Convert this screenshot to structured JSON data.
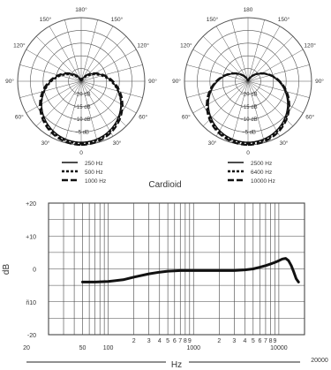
{
  "chart_data": [
    {
      "type": "polar",
      "angle_labels": [
        "180°",
        "150°",
        "150°",
        "120°",
        "120°",
        "90°",
        "90°",
        "60°",
        "60°",
        "30°",
        "30°",
        "0"
      ],
      "ring_labels": [
        "−20 dB",
        "−15 dB",
        "−10 dB",
        "−5 dB"
      ],
      "series": [
        {
          "name": "250 Hz",
          "pattern": "cardioid",
          "alpha": 0.5
        },
        {
          "name": "500 Hz",
          "pattern": "cardioid",
          "alpha": 0.48
        },
        {
          "name": "1000 Hz",
          "pattern": "cardioid",
          "alpha": 0.5
        }
      ]
    },
    {
      "type": "polar",
      "angle_labels": [
        "180",
        "150°",
        "150°",
        "120°",
        "120°",
        "90°",
        "90°",
        "60°",
        "60°",
        "30°",
        "30°",
        "0"
      ],
      "ring_labels": [
        "−20 dB",
        "−15 dB",
        "−10 dB",
        "−5 dB"
      ],
      "series": [
        {
          "name": "2500 Hz",
          "pattern": "cardioid",
          "alpha": 0.5
        },
        {
          "name": "6400 Hz",
          "pattern": "cardioid",
          "alpha": 0.5
        },
        {
          "name": "10000 Hz",
          "pattern": "cardioid",
          "alpha": 0.5
        }
      ]
    },
    {
      "type": "line",
      "title": "",
      "xlabel": "Hz",
      "ylabel": "dB",
      "x_scale": "log",
      "xlim": [
        20,
        20000
      ],
      "ylim": [
        -20,
        20
      ],
      "y_ticks": [
        "+20",
        "+10",
        "0",
        "ñ10",
        "-20"
      ],
      "x_ticks_major": [
        "20",
        "50",
        "100",
        "1000",
        "10000",
        "20000"
      ],
      "x_ticks_minor": [
        "2",
        "3",
        "4",
        "5",
        "6",
        "7",
        "8",
        "9",
        "2",
        "3",
        "4",
        "5",
        "6",
        "7",
        "8",
        "9"
      ],
      "series": [
        {
          "x": [
            50,
            70,
            100,
            150,
            200,
            300,
            400,
            500,
            700,
            1000,
            1500,
            2000,
            3000,
            4000,
            5000,
            6000,
            7000,
            8000,
            9000,
            10000,
            11000,
            12000,
            13000,
            14000,
            15000,
            16000,
            17000
          ],
          "values": [
            -4,
            -4,
            -3.8,
            -3.3,
            -2.5,
            -1.5,
            -1,
            -0.7,
            -0.5,
            -0.5,
            -0.5,
            -0.5,
            -0.5,
            -0.3,
            0,
            0.5,
            1,
            1.5,
            2,
            2.5,
            3,
            3.2,
            2.5,
            1,
            -1,
            -3,
            -4
          ]
        }
      ]
    }
  ],
  "caption": "Cardioid"
}
